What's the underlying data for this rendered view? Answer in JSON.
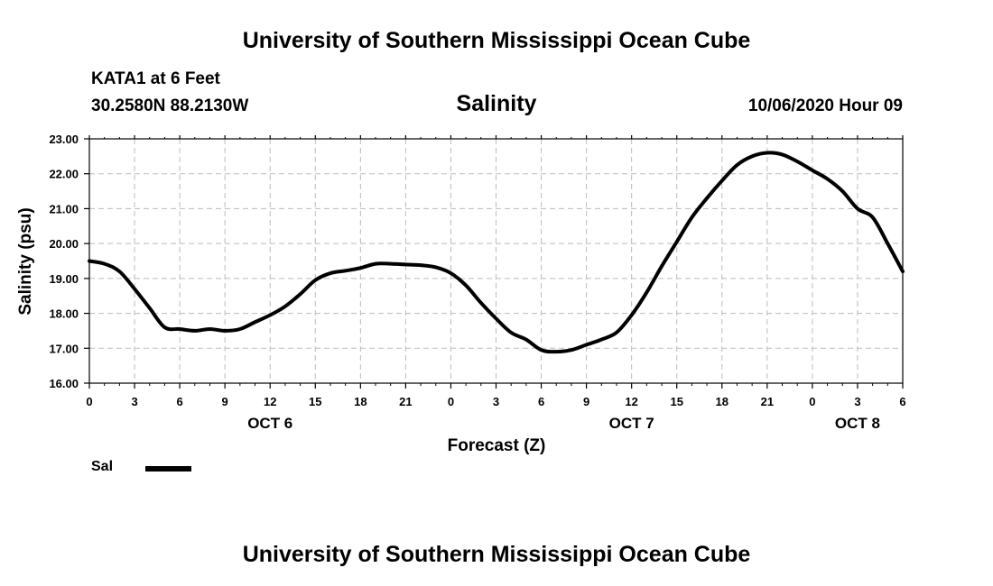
{
  "header": {
    "title": "University of Southern Mississippi Ocean Cube",
    "station": "KATA1 at 6 Feet",
    "coords": "30.2580N 88.2130W",
    "variable": "Salinity",
    "timestamp": "10/06/2020 Hour 09"
  },
  "footer": {
    "title": "University of Southern Mississippi Ocean Cube"
  },
  "legend": {
    "label": "Sal"
  },
  "chart_data": {
    "type": "line",
    "title": "Salinity",
    "xlabel": "Forecast (Z)",
    "ylabel": "Salinity (psu)",
    "xlim": [
      0,
      54
    ],
    "ylim": [
      16,
      23
    ],
    "yticks": [
      16,
      17,
      18,
      19,
      20,
      21,
      22,
      23
    ],
    "ytick_labels": [
      "16.00",
      "17.00",
      "18.00",
      "19.00",
      "20.00",
      "21.00",
      "22.00",
      "23.00"
    ],
    "xticks": [
      0,
      3,
      6,
      9,
      12,
      15,
      18,
      21,
      24,
      27,
      30,
      33,
      36,
      39,
      42,
      45,
      48,
      51,
      54
    ],
    "xtick_labels": [
      "0",
      "3",
      "6",
      "9",
      "12",
      "15",
      "18",
      "21",
      "0",
      "3",
      "6",
      "9",
      "12",
      "15",
      "18",
      "21",
      "0",
      "3",
      "6"
    ],
    "date_labels": [
      {
        "x": 12,
        "text": "OCT 6"
      },
      {
        "x": 36,
        "text": "OCT 7"
      },
      {
        "x": 51,
        "text": "OCT 8"
      }
    ],
    "grid": true,
    "legend_position": "bottom-left",
    "series": [
      {
        "name": "Sal",
        "x": [
          0,
          1,
          2,
          3,
          4,
          5,
          6,
          7,
          8,
          9,
          10,
          11,
          12,
          13,
          14,
          15,
          16,
          17,
          18,
          19,
          20,
          21,
          22,
          23,
          24,
          25,
          26,
          27,
          28,
          29,
          30,
          31,
          32,
          33,
          34,
          35,
          36,
          37,
          38,
          39,
          40,
          41,
          42,
          43,
          44,
          45,
          46,
          47,
          48,
          49,
          50,
          51,
          52,
          53,
          54
        ],
        "values": [
          19.5,
          19.42,
          19.2,
          18.7,
          18.15,
          17.6,
          17.55,
          17.5,
          17.55,
          17.5,
          17.55,
          17.75,
          17.95,
          18.2,
          18.55,
          18.95,
          19.15,
          19.22,
          19.3,
          19.42,
          19.42,
          19.4,
          19.38,
          19.32,
          19.15,
          18.8,
          18.3,
          17.85,
          17.45,
          17.25,
          16.95,
          16.9,
          16.95,
          17.1,
          17.25,
          17.45,
          17.95,
          18.6,
          19.35,
          20.05,
          20.75,
          21.3,
          21.8,
          22.25,
          22.5,
          22.6,
          22.55,
          22.35,
          22.1,
          21.85,
          21.5,
          21.0,
          20.75,
          20.0,
          19.2
        ]
      }
    ]
  }
}
